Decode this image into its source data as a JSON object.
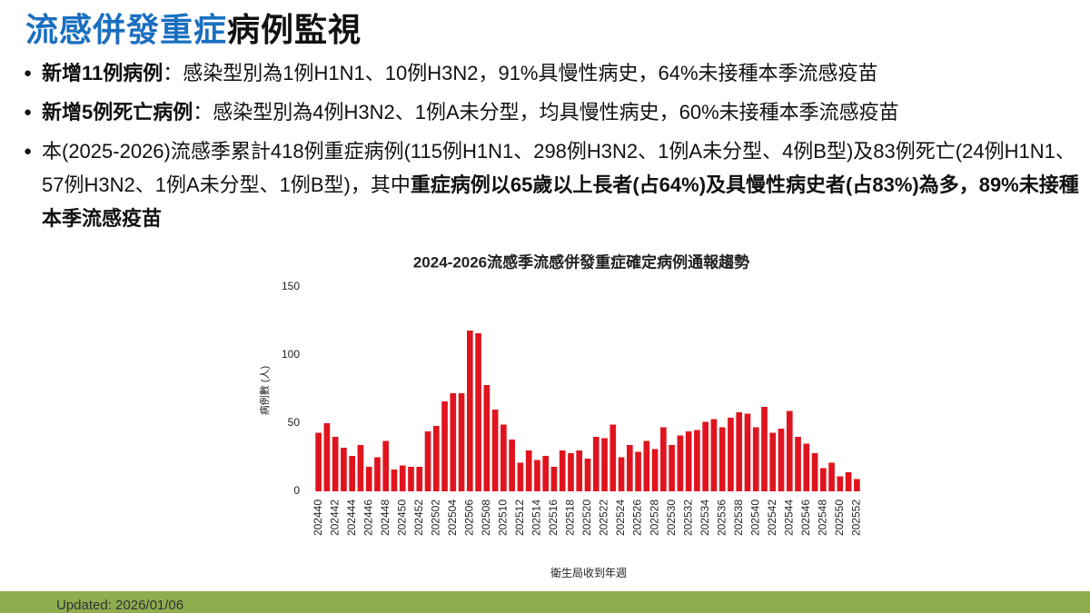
{
  "header": {
    "title": [
      {
        "text": "流感併發重症",
        "color": "#1a6fc0"
      },
      {
        "text": "病例監視",
        "color": "#111111"
      }
    ]
  },
  "bullets": [
    [
      {
        "text": "新增11例病例",
        "bold": true
      },
      {
        "text": "：感染型別為1例H1N1、10例H3N2，91%具慢性病史，64%未接種本季流感疫苗",
        "bold": false
      }
    ],
    [
      {
        "text": "新增5例死亡病例",
        "bold": true
      },
      {
        "text": "：感染型別為4例H3N2、1例A未分型，均具慢性病史，60%未接種本季流感疫苗",
        "bold": false
      }
    ],
    [
      {
        "text": "本(2025-2026)流感季累計418例重症病例(115例H1N1、298例H3N2、1例A未分型、4例B型)及83例死亡(24例H1N1、57例H3N2、1例A未分型、1例B型)，其中",
        "bold": false
      },
      {
        "text": "重症病例以65歲以上長者(占64%)及具慢性病史者(占83%)為多，89%未接種本季流感疫苗",
        "bold": true
      }
    ]
  ],
  "chart_data": {
    "type": "bar",
    "title": "2024-2026流感季流感併發重症確定病例通報趨勢",
    "y_label": "病例數 (人)",
    "x_label": "衛生局收到年週",
    "color": "#e0141e",
    "categories": [
      "202440",
      null,
      "202442",
      null,
      "202444",
      null,
      "202446",
      null,
      "202448",
      null,
      "202450",
      null,
      "202452",
      null,
      "202502",
      null,
      "202504",
      null,
      "202506",
      null,
      "202508",
      null,
      "202510",
      null,
      "202512",
      null,
      "202514",
      null,
      "202516",
      null,
      "202518",
      null,
      "202520",
      null,
      "202522",
      null,
      "202524",
      null,
      "202526",
      null,
      "202528",
      null,
      "202530",
      null,
      "202532",
      null,
      "202534",
      null,
      "202536",
      null,
      "202538",
      null,
      "202540",
      null,
      "202542",
      null,
      "202544",
      null,
      "202546",
      null,
      "202548",
      null,
      "202550",
      null,
      "202552"
    ],
    "values": [
      43,
      50,
      40,
      32,
      26,
      34,
      18,
      25,
      37,
      16,
      19,
      18,
      18,
      44,
      48,
      66,
      72,
      72,
      118,
      116,
      78,
      60,
      49,
      38,
      21,
      30,
      23,
      26,
      18,
      30,
      28,
      30,
      24,
      40,
      39,
      49,
      25,
      34,
      29,
      37,
      31,
      47,
      34,
      41,
      44,
      45,
      51,
      53,
      47,
      54,
      58,
      57,
      47,
      62,
      43,
      46,
      59,
      40,
      35,
      28,
      17,
      21,
      11,
      14,
      9
    ],
    "ylim": [
      0,
      150
    ],
    "yticks": [
      0,
      50,
      100,
      150
    ],
    "grid": false
  },
  "footer": {
    "updated": "Updated: 2026/01/06"
  }
}
